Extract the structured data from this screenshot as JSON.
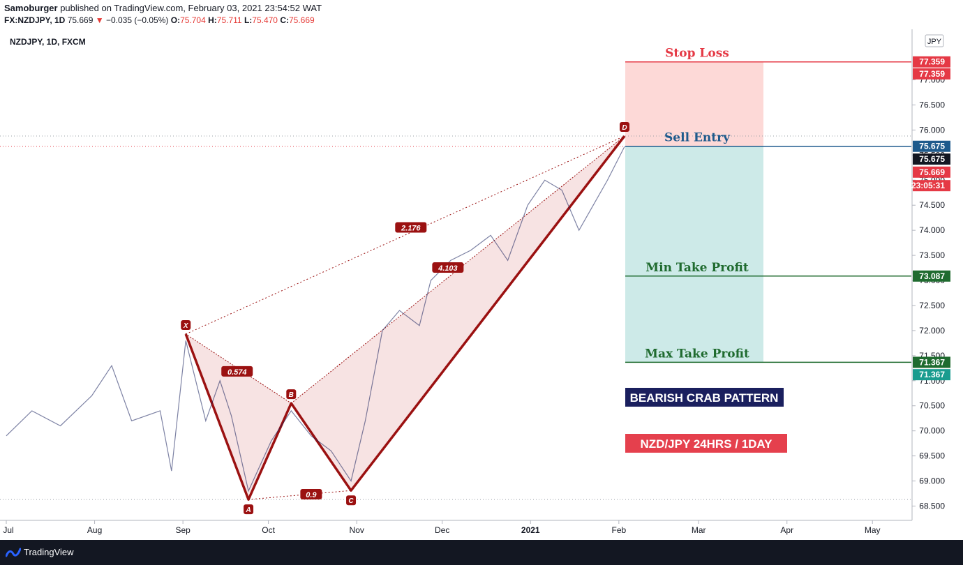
{
  "header": {
    "publisher": "Samoburger",
    "published_text": "published on TradingView.com, February 03, 2021 23:54:52 WAT",
    "symbol": "FX:NZDJPY, 1D",
    "last": "75.669",
    "change_arrow": "▼",
    "change": "−0.035 (−0.05%)",
    "o_label": "O:",
    "o": "75.704",
    "h_label": "H:",
    "h": "75.711",
    "l_label": "L:",
    "l": "75.470",
    "c_label": "C:",
    "c": "75.669"
  },
  "chart_legend": "NZDJPY, 1D, FXCM",
  "currency_badge": "JPY",
  "footer": {
    "brand": "TradingView"
  },
  "colors": {
    "up": "#131c5a",
    "down": "#e5404d",
    "pattern": "#9b1111",
    "stop_zone": "#fdd9d7",
    "profit_zone": "#cdeae8",
    "stop_line": "#e53945",
    "entry_line": "#1e5a8c",
    "tp_line": "#1f6b2f"
  },
  "chart_data": {
    "type": "candlestick",
    "x_ticks": [
      "Jul",
      "Aug",
      "Sep",
      "Oct",
      "Nov",
      "Dec",
      "2021",
      "Feb",
      "Mar",
      "Apr",
      "May"
    ],
    "y_ticks": [
      "68.500",
      "69.000",
      "69.500",
      "70.000",
      "70.500",
      "71.000",
      "71.500",
      "72.000",
      "72.500",
      "73.000",
      "73.500",
      "74.000",
      "74.500",
      "75.000",
      "75.500",
      "76.000",
      "76.500",
      "77.000"
    ],
    "ylim": [
      68.2,
      77.7
    ],
    "pattern": {
      "name": "BEARISH CRAB PATTERN",
      "points": [
        {
          "label": "X",
          "date": "2020-09-02",
          "price": 71.93
        },
        {
          "label": "A",
          "date": "2020-09-24",
          "price": 68.63
        },
        {
          "label": "B",
          "date": "2020-10-09",
          "price": 70.55
        },
        {
          "label": "C",
          "date": "2020-10-30",
          "price": 68.81
        },
        {
          "label": "D",
          "date": "2021-02-03",
          "price": 75.88
        }
      ],
      "ratios": [
        {
          "label": "0.574",
          "date": "2020-09-20",
          "price": 71.18
        },
        {
          "label": "0.9",
          "date": "2020-10-16",
          "price": 68.73
        },
        {
          "label": "2.176",
          "date": "2020-11-20",
          "price": 74.05
        },
        {
          "label": "4.103",
          "date": "2020-12-03",
          "price": 73.25
        }
      ]
    },
    "levels": [
      {
        "name": "Stop Loss",
        "price": "77.359"
      },
      {
        "name": "Sell Entry",
        "price": "75.675"
      },
      {
        "name": "Min Take Profit",
        "price": "73.087"
      },
      {
        "name": "Max Take Profit",
        "price": "71.367"
      }
    ],
    "price_labels": [
      {
        "text": "77.359",
        "price": 77.359,
        "color": "#e53945"
      },
      {
        "text": "77.359",
        "price": 77.12,
        "color": "#e53945"
      },
      {
        "text": "75.675",
        "price": 75.675,
        "color": "#1e5a8c"
      },
      {
        "text": "75.675",
        "price": 75.42,
        "color": "#131722"
      },
      {
        "text": "75.669",
        "price": 75.16,
        "color": "#e53945"
      },
      {
        "text": "23:05:31",
        "price": 74.89,
        "color": "#e53945"
      },
      {
        "text": "73.087",
        "price": 73.087,
        "color": "#1f6b2f"
      },
      {
        "text": "71.367",
        "price": 71.367,
        "color": "#1f6b2f"
      },
      {
        "text": "71.367",
        "price": 71.12,
        "color": "#1a9c8f"
      }
    ],
    "trend_points": [
      {
        "date": "2020-07-01",
        "price": 69.9
      },
      {
        "date": "2020-07-10",
        "price": 70.4
      },
      {
        "date": "2020-07-20",
        "price": 70.1
      },
      {
        "date": "2020-07-31",
        "price": 70.7
      },
      {
        "date": "2020-08-07",
        "price": 71.3
      },
      {
        "date": "2020-08-14",
        "price": 70.2
      },
      {
        "date": "2020-08-24",
        "price": 70.4
      },
      {
        "date": "2020-08-28",
        "price": 69.2
      },
      {
        "date": "2020-09-02",
        "price": 71.8
      },
      {
        "date": "2020-09-09",
        "price": 70.2
      },
      {
        "date": "2020-09-14",
        "price": 71.0
      },
      {
        "date": "2020-09-18",
        "price": 70.3
      },
      {
        "date": "2020-09-24",
        "price": 68.8
      },
      {
        "date": "2020-10-02",
        "price": 69.8
      },
      {
        "date": "2020-10-09",
        "price": 70.4
      },
      {
        "date": "2020-10-16",
        "price": 69.9
      },
      {
        "date": "2020-10-23",
        "price": 69.6
      },
      {
        "date": "2020-10-30",
        "price": 69.0
      },
      {
        "date": "2020-11-04",
        "price": 70.2
      },
      {
        "date": "2020-11-10",
        "price": 72.0
      },
      {
        "date": "2020-11-16",
        "price": 72.4
      },
      {
        "date": "2020-11-23",
        "price": 72.1
      },
      {
        "date": "2020-11-27",
        "price": 73.0
      },
      {
        "date": "2020-12-04",
        "price": 73.4
      },
      {
        "date": "2020-12-11",
        "price": 73.6
      },
      {
        "date": "2020-12-18",
        "price": 73.9
      },
      {
        "date": "2020-12-24",
        "price": 73.4
      },
      {
        "date": "2020-12-31",
        "price": 74.5
      },
      {
        "date": "2021-01-06",
        "price": 75.0
      },
      {
        "date": "2021-01-12",
        "price": 74.8
      },
      {
        "date": "2021-01-18",
        "price": 74.0
      },
      {
        "date": "2021-01-22",
        "price": 74.4
      },
      {
        "date": "2021-01-28",
        "price": 75.0
      },
      {
        "date": "2021-02-03",
        "price": 75.67
      }
    ]
  }
}
